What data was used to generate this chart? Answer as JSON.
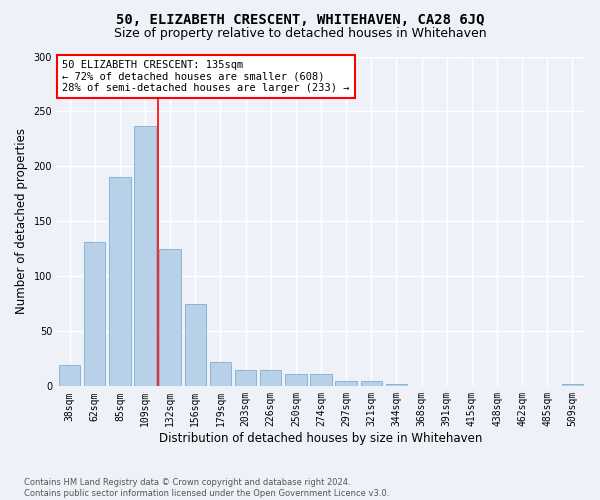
{
  "title": "50, ELIZABETH CRESCENT, WHITEHAVEN, CA28 6JQ",
  "subtitle": "Size of property relative to detached houses in Whitehaven",
  "xlabel": "Distribution of detached houses by size in Whitehaven",
  "ylabel": "Number of detached properties",
  "categories": [
    "38sqm",
    "62sqm",
    "85sqm",
    "109sqm",
    "132sqm",
    "156sqm",
    "179sqm",
    "203sqm",
    "226sqm",
    "250sqm",
    "274sqm",
    "297sqm",
    "321sqm",
    "344sqm",
    "368sqm",
    "391sqm",
    "415sqm",
    "438sqm",
    "462sqm",
    "485sqm",
    "509sqm"
  ],
  "values": [
    19,
    131,
    190,
    237,
    125,
    75,
    22,
    15,
    15,
    11,
    11,
    5,
    5,
    2,
    0,
    0,
    0,
    0,
    0,
    0,
    2
  ],
  "bar_color": "#b8d0e8",
  "bar_edge_color": "#7aafd4",
  "vline_x": 3.5,
  "vline_color": "red",
  "annotation_line1": "50 ELIZABETH CRESCENT: 135sqm",
  "annotation_line2": "← 72% of detached houses are smaller (608)",
  "annotation_line3": "28% of semi-detached houses are larger (233) →",
  "annotation_box_color": "white",
  "annotation_box_edge": "red",
  "ylim": [
    0,
    300
  ],
  "yticks": [
    0,
    50,
    100,
    150,
    200,
    250,
    300
  ],
  "footnote": "Contains HM Land Registry data © Crown copyright and database right 2024.\nContains public sector information licensed under the Open Government Licence v3.0.",
  "bg_color": "#eef2f8",
  "grid_color": "white",
  "title_fontsize": 10,
  "subtitle_fontsize": 9,
  "label_fontsize": 8.5,
  "tick_fontsize": 7,
  "annot_fontsize": 7.5
}
